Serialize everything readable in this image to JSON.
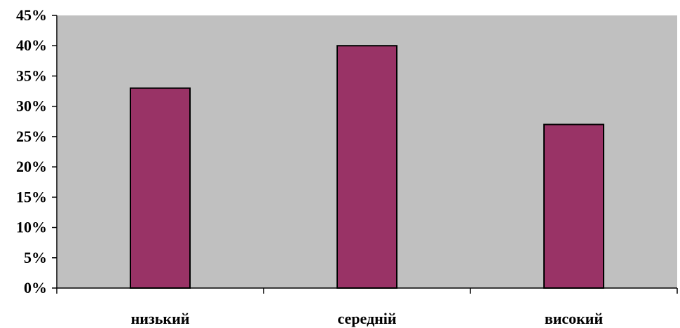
{
  "chart_data": {
    "type": "bar",
    "categories": [
      "низький",
      "середній",
      "високий"
    ],
    "values": [
      33,
      40,
      27
    ],
    "value_unit": "%",
    "ylim": [
      0,
      45
    ],
    "y_ticks": [
      0,
      5,
      10,
      15,
      20,
      25,
      30,
      35,
      40,
      45
    ],
    "y_tick_labels": [
      "0%",
      "5%",
      "10%",
      "15%",
      "20%",
      "25%",
      "30%",
      "35%",
      "40%",
      "45%"
    ],
    "title": "",
    "xlabel": "",
    "ylabel": "",
    "grid": false,
    "legend": "none",
    "colors": {
      "plot_background": "#C0C0C0",
      "bar_fill": "#993366",
      "bar_stroke": "#000000",
      "axis": "#000000"
    }
  }
}
